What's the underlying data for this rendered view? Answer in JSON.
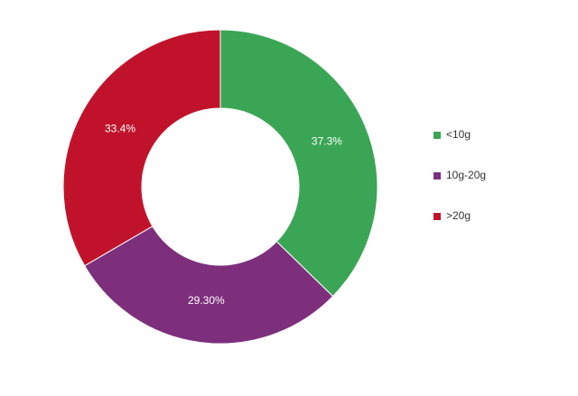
{
  "chart_data": {
    "type": "donut",
    "categories": [
      "<10g",
      "10g-20g",
      ">20g"
    ],
    "values": [
      37.3,
      29.3,
      33.4
    ],
    "value_labels": [
      "37.3%",
      "29.30%",
      "33.4%"
    ],
    "colors": [
      "#3aa655",
      "#7d2f7c",
      "#c0132b"
    ],
    "legend": "right"
  }
}
